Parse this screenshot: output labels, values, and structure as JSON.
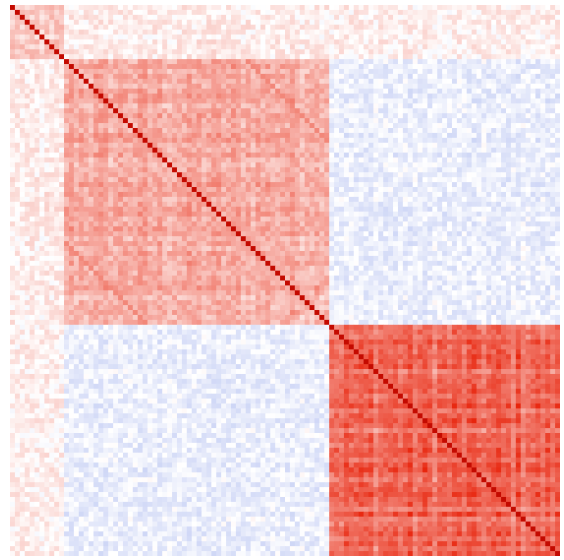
{
  "chart_data": {
    "type": "heatmap",
    "title": "",
    "xlabel": "",
    "ylabel": "",
    "matrix_size": 112,
    "value_range": [
      -1,
      1
    ],
    "colors": {
      "negative": "#3b5bdb",
      "neutral": "#ffffff",
      "positive": "#e8240c",
      "diagonal": "#c40a00"
    },
    "blocks": [
      {
        "name": "block-small-top-left",
        "start": 0,
        "end": 11
      },
      {
        "name": "block-middle",
        "start": 11,
        "end": 65
      },
      {
        "name": "block-bottom-right",
        "start": 65,
        "end": 112
      }
    ],
    "block_mean_correlation": [
      [
        0.25,
        0.1,
        0.08
      ],
      [
        0.1,
        0.45,
        -0.12
      ],
      [
        0.08,
        -0.12,
        0.8
      ]
    ],
    "offdiagonal_stripes": [
      {
        "offset": 37,
        "value": 0.55
      },
      {
        "offset": 26,
        "value": 0.45
      }
    ],
    "noise_amplitude": 0.12
  }
}
